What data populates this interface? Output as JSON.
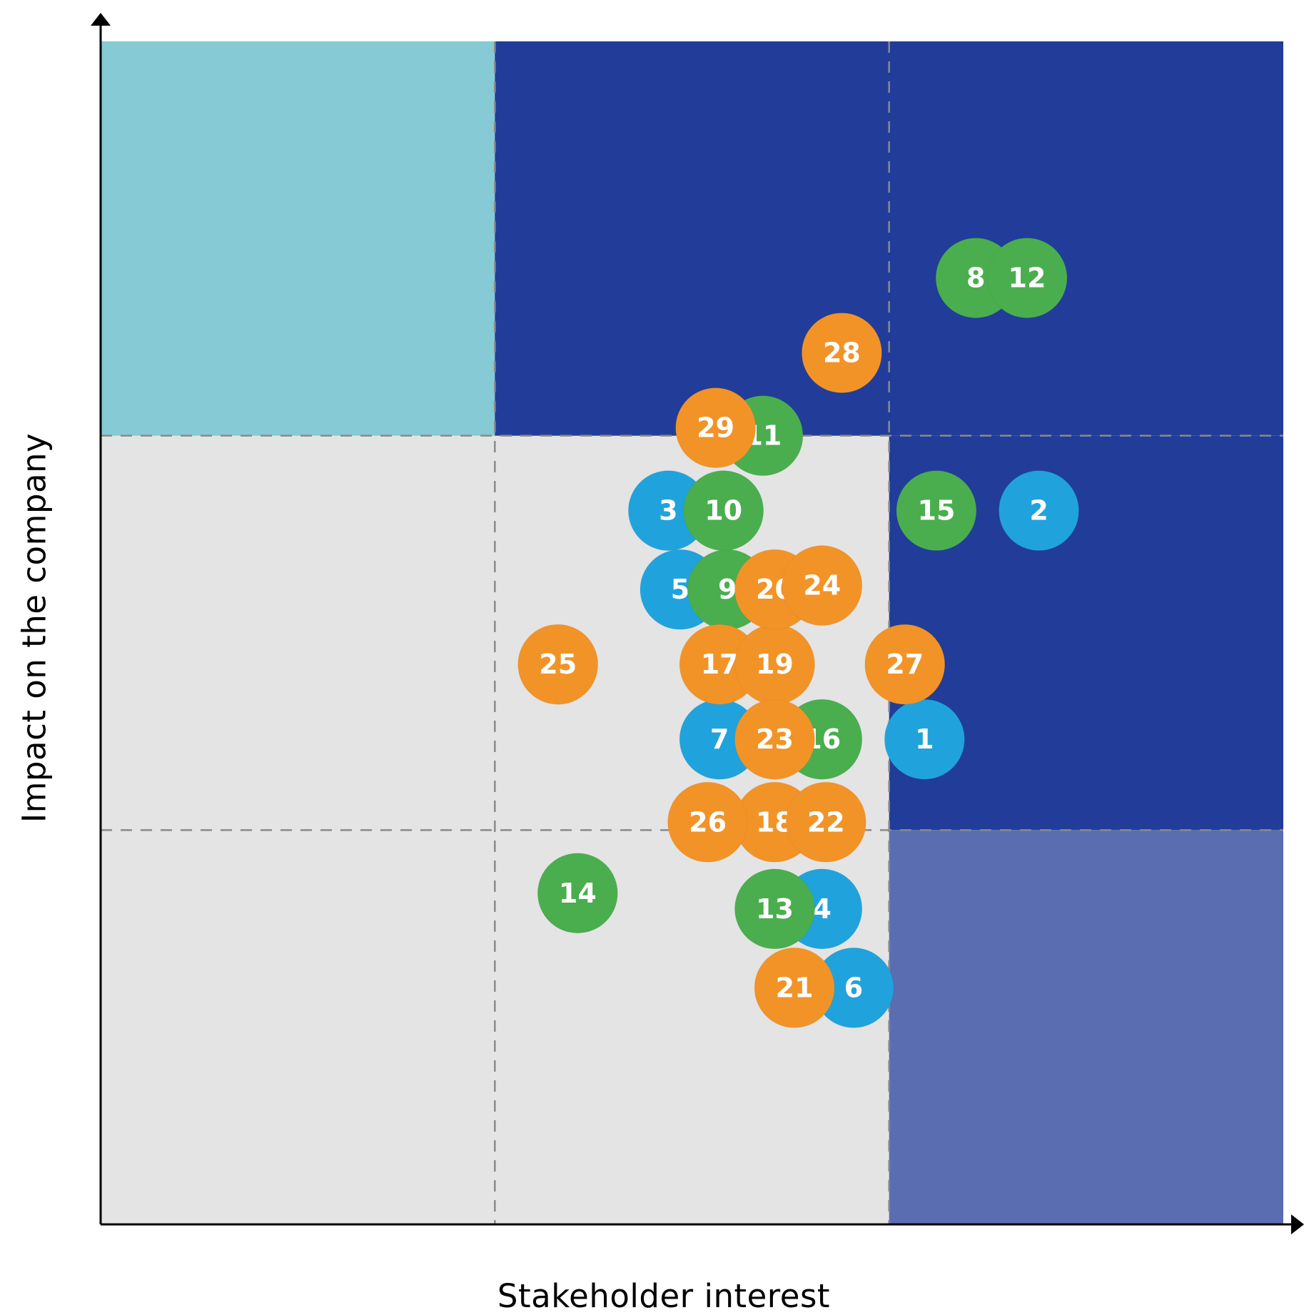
{
  "chart_data": {
    "type": "scatter",
    "title": "",
    "xlabel": "Stakeholder interest",
    "ylabel": "Impact on the company",
    "xlim": [
      0,
      3
    ],
    "ylim": [
      0,
      3
    ],
    "grid": "dashed lines at 1 and 2 on both axes",
    "legend": "none",
    "quadrant_colors": {
      "light_grey": "#e4e4e4",
      "light_teal": "#85cad4",
      "dark_blue": "#213d99",
      "medium_blue": "#5b6db1"
    },
    "group_colors": {
      "blue": "#20a3dc",
      "green": "#4aae4e",
      "orange": "#f29327"
    },
    "points": [
      {
        "label": "1",
        "x": 2.09,
        "y": 1.23,
        "group": "blue"
      },
      {
        "label": "2",
        "x": 2.38,
        "y": 1.81,
        "group": "blue"
      },
      {
        "label": "3",
        "x": 1.44,
        "y": 1.81,
        "group": "blue"
      },
      {
        "label": "4",
        "x": 1.83,
        "y": 0.8,
        "group": "blue"
      },
      {
        "label": "5",
        "x": 1.47,
        "y": 1.61,
        "group": "blue"
      },
      {
        "label": "6",
        "x": 1.91,
        "y": 0.6,
        "group": "blue"
      },
      {
        "label": "7",
        "x": 1.57,
        "y": 1.23,
        "group": "blue"
      },
      {
        "label": "8",
        "x": 2.22,
        "y": 2.4,
        "group": "green"
      },
      {
        "label": "9",
        "x": 1.59,
        "y": 1.61,
        "group": "green"
      },
      {
        "label": "10",
        "x": 1.58,
        "y": 1.81,
        "group": "green"
      },
      {
        "label": "11",
        "x": 1.68,
        "y": 2.0,
        "group": "green"
      },
      {
        "label": "12",
        "x": 2.35,
        "y": 2.4,
        "group": "green"
      },
      {
        "label": "13",
        "x": 1.71,
        "y": 0.8,
        "group": "green"
      },
      {
        "label": "14",
        "x": 1.21,
        "y": 0.84,
        "group": "green"
      },
      {
        "label": "15",
        "x": 2.12,
        "y": 1.81,
        "group": "green"
      },
      {
        "label": "16",
        "x": 1.83,
        "y": 1.23,
        "group": "green"
      },
      {
        "label": "17",
        "x": 1.57,
        "y": 1.42,
        "group": "orange"
      },
      {
        "label": "18",
        "x": 1.71,
        "y": 1.02,
        "group": "orange"
      },
      {
        "label": "19",
        "x": 1.71,
        "y": 1.42,
        "group": "orange"
      },
      {
        "label": "20",
        "x": 1.71,
        "y": 1.61,
        "group": "orange"
      },
      {
        "label": "21",
        "x": 1.76,
        "y": 0.6,
        "group": "orange"
      },
      {
        "label": "22",
        "x": 1.84,
        "y": 1.02,
        "group": "orange"
      },
      {
        "label": "23",
        "x": 1.71,
        "y": 1.23,
        "group": "orange"
      },
      {
        "label": "24",
        "x": 1.83,
        "y": 1.62,
        "group": "orange"
      },
      {
        "label": "25",
        "x": 1.16,
        "y": 1.42,
        "group": "orange"
      },
      {
        "label": "26",
        "x": 1.54,
        "y": 1.02,
        "group": "orange"
      },
      {
        "label": "27",
        "x": 2.04,
        "y": 1.42,
        "group": "orange"
      },
      {
        "label": "28",
        "x": 1.88,
        "y": 2.21,
        "group": "orange"
      },
      {
        "label": "29",
        "x": 1.56,
        "y": 2.02,
        "group": "orange"
      }
    ]
  }
}
